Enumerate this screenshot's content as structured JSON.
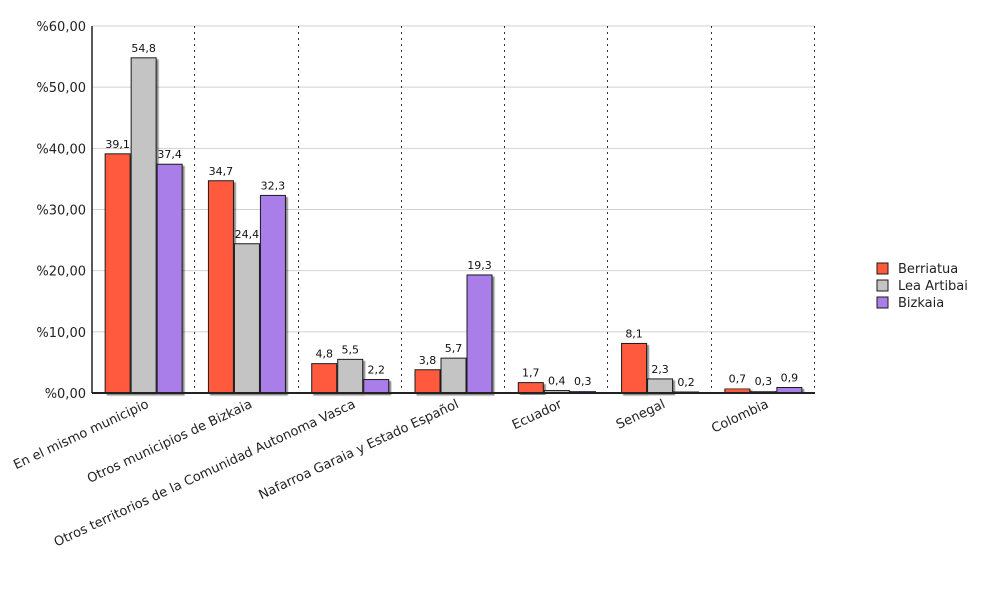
{
  "chart_data": {
    "type": "bar",
    "categories": [
      "En el mismo municipio",
      "Otros municipios de Bizkaia",
      "Otros territorios de la Comunidad Autonoma Vasca",
      "Nafarroa Garaia y Estado Español",
      "Ecuador",
      "Senegal",
      "Colombia"
    ],
    "series": [
      {
        "name": "Berriatua",
        "color": "#ff5a3c",
        "values": [
          39.1,
          34.7,
          4.8,
          3.8,
          1.7,
          8.1,
          0.7
        ],
        "labels": [
          "39,1",
          "34,7",
          "4,8",
          "3,8",
          "1,7",
          "8,1",
          "0,7"
        ]
      },
      {
        "name": "Lea Artibai",
        "color": "#c4c4c4",
        "values": [
          54.8,
          24.4,
          5.5,
          5.7,
          0.4,
          2.3,
          0.3
        ],
        "labels": [
          "54,8",
          "24,4",
          "5,5",
          "5,7",
          "0,4",
          "2,3",
          "0,3"
        ]
      },
      {
        "name": "Bizkaia",
        "color": "#a97ee8",
        "values": [
          37.4,
          32.3,
          2.2,
          19.3,
          0.3,
          0.2,
          0.9
        ],
        "labels": [
          "37,4",
          "32,3",
          "2,2",
          "19,3",
          "0,3",
          "0,2",
          "0,9"
        ]
      }
    ],
    "yticks": [
      0,
      10,
      20,
      30,
      40,
      50,
      60
    ],
    "ytick_labels": [
      "%0,00",
      "%10,00",
      "%20,00",
      "%30,00",
      "%40,00",
      "%50,00",
      "%60,00"
    ],
    "ylim": [
      0,
      60
    ],
    "grid": true,
    "legend_position": "right"
  }
}
